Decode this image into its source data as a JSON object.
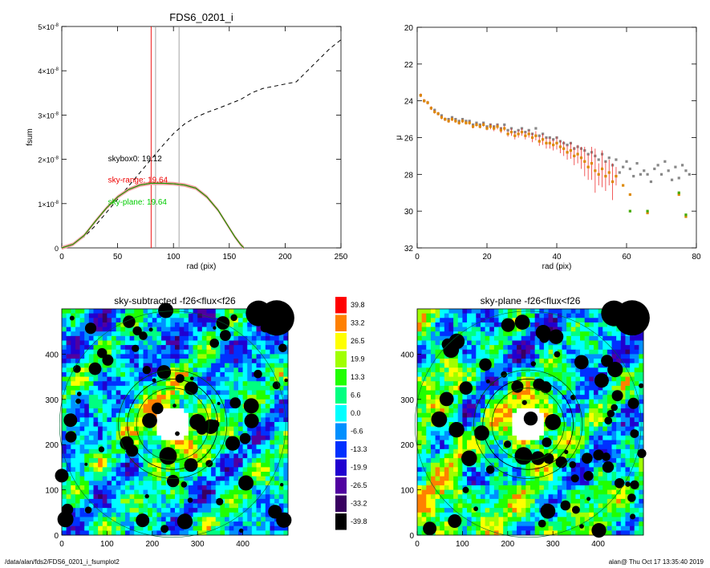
{
  "chart_data": [
    {
      "type": "line",
      "title": "FDS6_0201_i",
      "xlabel": "rad (pix)",
      "ylabel": "fsum",
      "xlim": [
        0,
        250
      ],
      "ylim": [
        0,
        5e-08
      ],
      "x_ticks": [
        "0",
        "50",
        "100",
        "150",
        "200",
        "250"
      ],
      "y_ticks": [
        {
          "mant": "0",
          "exp": ""
        },
        {
          "mant": "1×10",
          "exp": "-8"
        },
        {
          "mant": "2×10",
          "exp": "-8"
        },
        {
          "mant": "3×10",
          "exp": "-8"
        },
        {
          "mant": "4×10",
          "exp": "-8"
        },
        {
          "mant": "5×10",
          "exp": "-8"
        }
      ],
      "series": [
        {
          "style": "dashed",
          "color": "#000000",
          "x": [
            0,
            5,
            10,
            20,
            30,
            40,
            50,
            60,
            70,
            80,
            90,
            100,
            110,
            120,
            130,
            140,
            150,
            160,
            170,
            180,
            190,
            200,
            210,
            220,
            230,
            240,
            250
          ],
          "y": [
            0,
            3e-10,
            8e-10,
            2.5e-09,
            5e-09,
            8e-09,
            1.1e-08,
            1.4e-08,
            1.7e-08,
            2e-08,
            2.3e-08,
            2.58e-08,
            2.8e-08,
            2.95e-08,
            3.06e-08,
            3.15e-08,
            3.25e-08,
            3.35e-08,
            3.5e-08,
            3.6e-08,
            3.65e-08,
            3.7e-08,
            3.75e-08,
            4e-08,
            4.25e-08,
            4.5e-08,
            4.7e-08
          ]
        },
        {
          "style": "solid",
          "color": "#cc0000",
          "band": "#f2a0a0",
          "x": [
            0,
            10,
            20,
            30,
            40,
            50,
            60,
            70,
            80,
            90,
            100,
            110,
            120,
            130,
            140,
            150,
            155,
            160,
            163
          ],
          "y": [
            0,
            8e-10,
            2.8e-09,
            6e-09,
            9e-09,
            1.15e-08,
            1.32e-08,
            1.42e-08,
            1.46e-08,
            1.46e-08,
            1.45e-08,
            1.42e-08,
            1.35e-08,
            1.15e-08,
            8.5e-09,
            4.5e-09,
            2.5e-09,
            8e-10,
            0
          ]
        },
        {
          "style": "solid",
          "color": "#00aa00",
          "x": [
            0,
            10,
            20,
            30,
            40,
            50,
            60,
            70,
            80,
            90,
            100,
            110,
            120,
            130,
            140,
            150,
            155,
            160,
            163
          ],
          "y": [
            0,
            8e-10,
            2.8e-09,
            6e-09,
            9e-09,
            1.15e-08,
            1.32e-08,
            1.42e-08,
            1.46e-08,
            1.46e-08,
            1.45e-08,
            1.42e-08,
            1.35e-08,
            1.15e-08,
            8.5e-09,
            4.5e-09,
            2.5e-09,
            8e-10,
            0
          ]
        }
      ],
      "vlines": [
        {
          "x": 80,
          "color": "#ee0000"
        },
        {
          "x": 84,
          "color": "#999999"
        },
        {
          "x": 105,
          "color": "#999999"
        }
      ],
      "annotations": [
        {
          "text": "skybox0: 19.12",
          "color": "#000000",
          "x": 50,
          "y": 1.96e-08
        },
        {
          "text": "sky-range: 19.64",
          "color": "#ee0000",
          "x": 50,
          "y": 1.48e-08
        },
        {
          "text": "sky-plane: 19.64",
          "color": "#00cc00",
          "x": 50,
          "y": 9.8e-09
        }
      ]
    },
    {
      "type": "scatter",
      "xlabel": "rad (pix)",
      "ylabel": "μ",
      "xlim": [
        0,
        80
      ],
      "ylim": [
        32,
        20
      ],
      "y_reversed": true,
      "x_ticks": [
        "0",
        "20",
        "40",
        "60",
        "80"
      ],
      "y_ticks": [
        "20",
        "22",
        "24",
        "26",
        "28",
        "30",
        "32"
      ],
      "series": [
        {
          "marker": "square",
          "color": "#888888",
          "x": [
            1,
            2,
            3,
            4,
            5,
            6,
            7,
            8,
            9,
            10,
            11,
            12,
            13,
            14,
            15,
            16,
            17,
            18,
            19,
            20,
            21,
            22,
            23,
            24,
            25,
            26,
            27,
            28,
            29,
            30,
            31,
            32,
            33,
            34,
            35,
            36,
            37,
            38,
            39,
            40,
            41,
            42,
            43,
            44,
            45,
            46,
            47,
            48,
            49,
            50,
            51,
            52,
            53,
            54,
            55,
            56,
            57,
            58,
            59,
            60,
            61,
            62,
            63,
            64,
            65,
            66,
            67,
            68,
            69,
            70,
            71,
            72,
            73,
            74,
            75,
            76,
            77,
            78
          ],
          "y": [
            23.7,
            24.0,
            24.1,
            24.4,
            24.5,
            24.7,
            24.8,
            25.0,
            25.0,
            24.9,
            25.0,
            25.1,
            25.0,
            25.1,
            25.1,
            25.3,
            25.2,
            25.3,
            25.2,
            25.4,
            25.3,
            25.4,
            25.3,
            25.5,
            25.3,
            25.6,
            25.5,
            25.7,
            25.6,
            25.5,
            25.7,
            25.6,
            25.8,
            25.5,
            25.9,
            25.8,
            26.0,
            26.0,
            26.1,
            26.0,
            26.2,
            26.3,
            26.4,
            26.3,
            26.6,
            26.5,
            26.6,
            26.7,
            26.9,
            26.8,
            27.0,
            27.2,
            26.9,
            27.3,
            27.1,
            27.5,
            27.2,
            27.9,
            27.6,
            27.3,
            27.7,
            28.1,
            27.4,
            28.0,
            27.8,
            28.0,
            28.4,
            27.7,
            27.5,
            28.0,
            27.3,
            27.8,
            28.3,
            27.6,
            28.2,
            27.5,
            27.8,
            28.0
          ]
        },
        {
          "marker": "square",
          "color": "#dd8800",
          "errcolor": "#ee3333",
          "x": [
            1,
            2,
            3,
            4,
            5,
            6,
            7,
            8,
            9,
            10,
            11,
            12,
            13,
            14,
            15,
            16,
            17,
            18,
            19,
            20,
            21,
            22,
            23,
            24,
            25,
            26,
            27,
            28,
            29,
            30,
            31,
            32,
            33,
            34,
            35,
            36,
            37,
            38,
            39,
            40,
            41,
            42,
            43,
            44,
            45,
            46,
            47,
            48,
            49,
            50,
            51,
            52,
            53,
            54,
            55,
            56,
            57,
            59,
            61,
            66,
            75,
            77
          ],
          "y": [
            23.7,
            24.0,
            24.1,
            24.4,
            24.6,
            24.7,
            24.9,
            25.0,
            25.1,
            25.0,
            25.1,
            25.2,
            25.1,
            25.2,
            25.2,
            25.4,
            25.3,
            25.4,
            25.3,
            25.5,
            25.4,
            25.5,
            25.4,
            25.6,
            25.5,
            25.8,
            25.7,
            25.9,
            25.8,
            25.7,
            25.9,
            25.8,
            26.0,
            25.9,
            26.2,
            26.1,
            26.3,
            26.3,
            26.4,
            26.3,
            26.5,
            26.6,
            26.8,
            26.7,
            27.0,
            26.9,
            27.1,
            27.3,
            27.6,
            27.4,
            27.8,
            28.0,
            27.7,
            28.1,
            27.9,
            28.4,
            28.1,
            28.6,
            29.1,
            30.1,
            29.1,
            30.3
          ],
          "err": [
            0.1,
            0.1,
            0.1,
            0.1,
            0.1,
            0.1,
            0.1,
            0.1,
            0.1,
            0.1,
            0.1,
            0.1,
            0.1,
            0.1,
            0.1,
            0.1,
            0.1,
            0.1,
            0.1,
            0.1,
            0.15,
            0.15,
            0.15,
            0.15,
            0.15,
            0.15,
            0.2,
            0.2,
            0.2,
            0.2,
            0.2,
            0.2,
            0.25,
            0.25,
            0.25,
            0.3,
            0.3,
            0.3,
            0.3,
            0.35,
            0.35,
            0.4,
            0.4,
            0.45,
            0.5,
            0.5,
            0.6,
            0.8,
            0.7,
            0.9,
            1.2,
            0.6,
            1.0,
            0.8,
            0.7,
            1.0,
            0.5,
            0,
            0,
            0,
            0,
            0
          ]
        },
        {
          "marker": "square",
          "color": "#44aa00",
          "x": [
            61,
            66,
            75,
            77
          ],
          "y": [
            30.0,
            30.0,
            29.0,
            30.2
          ]
        }
      ]
    },
    {
      "type": "heatmap",
      "title": "sky-subtracted -f26<flux<f26",
      "xlim": [
        0,
        500
      ],
      "ylim": [
        0,
        500
      ],
      "x_ticks": [
        "0",
        "100",
        "200",
        "300",
        "400"
      ],
      "y_ticks": [
        "0",
        "100",
        "200",
        "300",
        "400"
      ],
      "circles_radius": [
        80,
        100,
        120
      ],
      "center": [
        245,
        245
      ]
    },
    {
      "type": "heatmap",
      "title": "sky-plane -f26<flux<f26",
      "xlim": [
        0,
        500
      ],
      "ylim": [
        0,
        500
      ],
      "x_ticks": [
        "0",
        "100",
        "200",
        "300",
        "400"
      ],
      "y_ticks": [
        "0",
        "100",
        "200",
        "300",
        "400"
      ],
      "circles_radius": [
        80,
        100,
        120
      ],
      "center": [
        245,
        245
      ]
    }
  ],
  "colorbar": {
    "labels": [
      "39.8",
      "33.2",
      "26.5",
      "19.9",
      "13.3",
      "6.6",
      "0.0",
      "-6.6",
      "-13.3",
      "-19.9",
      "-26.5",
      "-33.2",
      "-39.8"
    ],
    "colors": [
      "#ff0000",
      "#ff8000",
      "#ffff00",
      "#a0ff00",
      "#20ff00",
      "#00ff80",
      "#00ffff",
      "#0090ff",
      "#0030ff",
      "#2000d0",
      "#5000a0",
      "#380060",
      "#000000"
    ]
  },
  "footer": {
    "left": "/data/alan/fds2/FDS6_0201_i_fsumplot2",
    "right": "alan@  Thu Oct 17 13:35:40 2019"
  }
}
